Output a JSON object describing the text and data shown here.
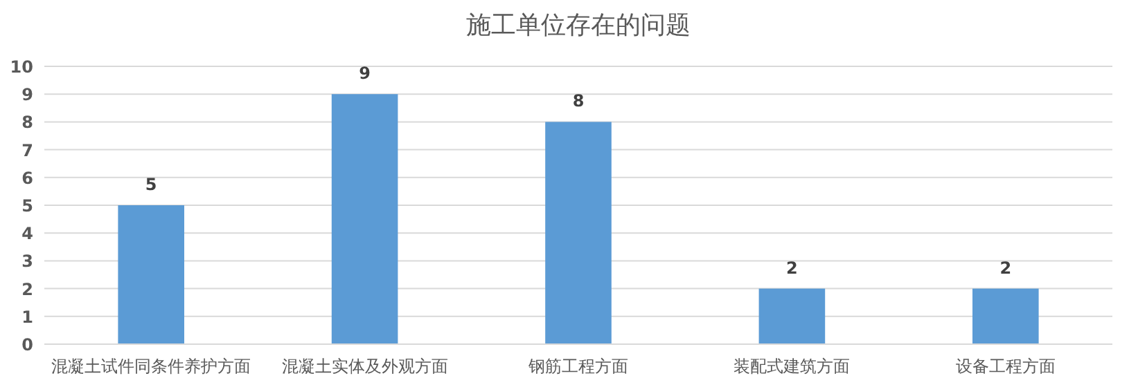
{
  "chart_data": {
    "type": "bar",
    "title": "施工单位存在的问题",
    "categories": [
      "混凝土试件同条件养护方面",
      "混凝土实体及外观方面",
      "钢筋工程方面",
      "装配式建筑方面",
      "设备工程方面"
    ],
    "values": [
      5,
      9,
      8,
      2,
      2
    ],
    "color": "#5b9bd5",
    "ylim": [
      0,
      10
    ],
    "yticks": [
      0,
      1,
      2,
      3,
      4,
      5,
      6,
      7,
      8,
      9,
      10
    ],
    "grid": "y",
    "data_labels": true
  }
}
